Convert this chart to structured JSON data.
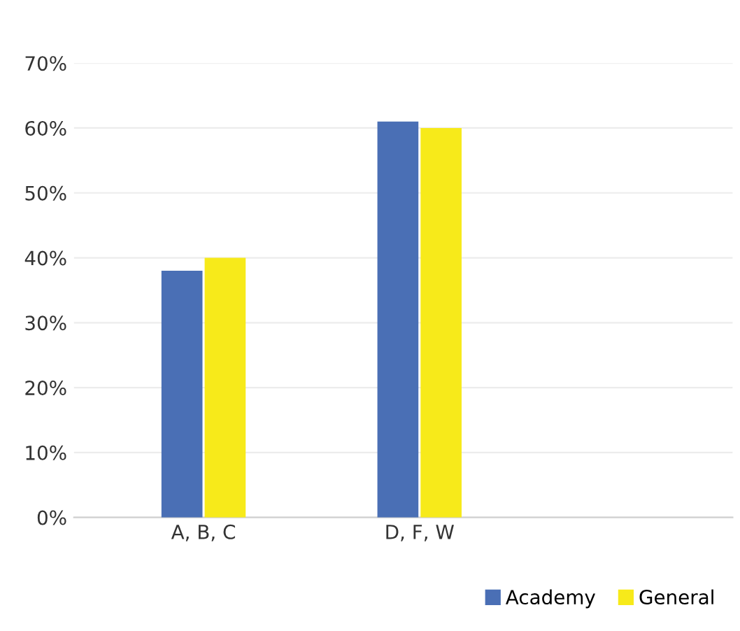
{
  "chart_data": {
    "type": "bar",
    "categories": [
      "A, B, C",
      "D, F, W"
    ],
    "series": [
      {
        "name": "Academy",
        "color": "#4a6fb5",
        "values": [
          38,
          61
        ]
      },
      {
        "name": "General",
        "color": "#f7ea1a",
        "values": [
          40,
          60
        ]
      }
    ],
    "ylim": [
      0,
      70
    ],
    "yticks": [
      {
        "value": 0,
        "label": "0%"
      },
      {
        "value": 10,
        "label": "10%"
      },
      {
        "value": 20,
        "label": "20%"
      },
      {
        "value": 30,
        "label": "30%"
      },
      {
        "value": 40,
        "label": "40%"
      },
      {
        "value": 50,
        "label": "50%"
      },
      {
        "value": 60,
        "label": "60%"
      },
      {
        "value": 70,
        "label": "70%"
      }
    ],
    "grid": "y",
    "legend": "bottom right"
  }
}
